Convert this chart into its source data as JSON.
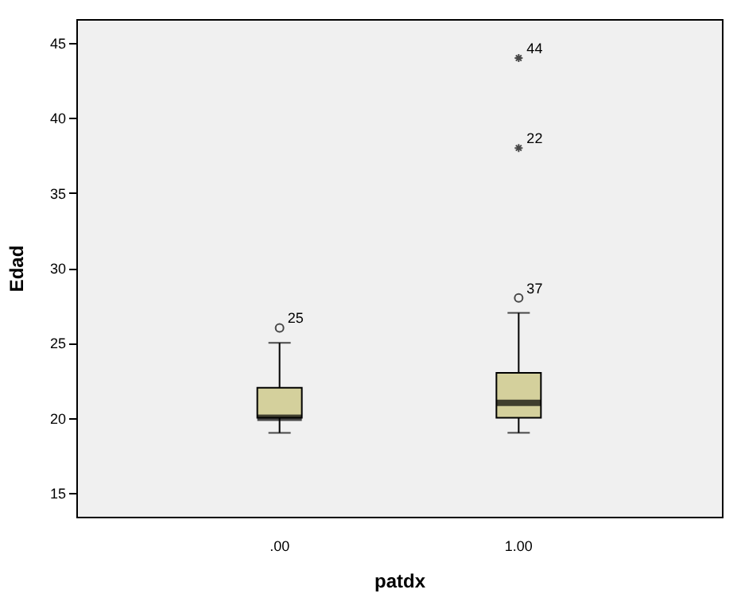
{
  "chart_data": {
    "type": "box",
    "xlabel": "patdx",
    "ylabel": "Edad",
    "categories": [
      ".00",
      "1.00"
    ],
    "boxes": [
      {
        "low": 19,
        "q1": 20,
        "median": 20,
        "q3": 22,
        "high": 25,
        "outliers": [
          26
        ]
      },
      {
        "low": 19,
        "q1": 20,
        "median": 21,
        "q3": 23,
        "high": 27,
        "outliers": [
          28,
          38,
          44
        ]
      }
    ],
    "color": "#d4d09c",
    "ylim": [
      13.4,
      46.6
    ],
    "yticks": [
      15,
      20,
      25,
      30,
      35,
      40,
      45
    ],
    "annotations": [
      "25",
      "37",
      "22",
      "44"
    ]
  }
}
